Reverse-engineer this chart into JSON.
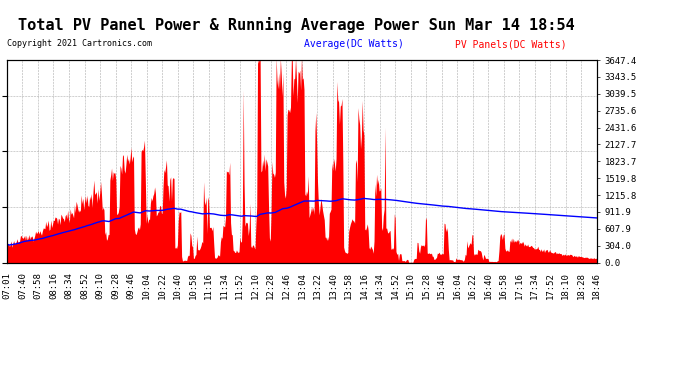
{
  "title": "Total PV Panel Power & Running Average Power Sun Mar 14 18:54",
  "copyright": "Copyright 2021 Cartronics.com",
  "legend_avg": "Average(DC Watts)",
  "legend_pv": "PV Panels(DC Watts)",
  "ylabel_right_ticks": [
    0.0,
    304.0,
    607.9,
    911.9,
    1215.8,
    1519.8,
    1823.7,
    2127.7,
    2431.6,
    2735.6,
    3039.5,
    3343.5,
    3647.4
  ],
  "ymax": 3647.4,
  "ymin": 0.0,
  "bar_color": "#FF0000",
  "line_color": "#0000FF",
  "background_color": "#FFFFFF",
  "grid_color": "#999999",
  "title_fontsize": 11,
  "tick_fontsize": 6.5,
  "copyright_fontsize": 6,
  "legend_fontsize": 7,
  "x_tick_labels": [
    "07:01",
    "07:40",
    "07:58",
    "08:16",
    "08:34",
    "08:52",
    "09:10",
    "09:28",
    "09:46",
    "10:04",
    "10:22",
    "10:40",
    "10:58",
    "11:16",
    "11:34",
    "11:52",
    "12:10",
    "12:28",
    "12:46",
    "13:04",
    "13:22",
    "13:40",
    "13:58",
    "14:16",
    "14:34",
    "14:52",
    "15:10",
    "15:28",
    "15:46",
    "16:04",
    "16:22",
    "16:40",
    "16:58",
    "17:16",
    "17:34",
    "17:52",
    "18:10",
    "18:28",
    "18:46"
  ]
}
